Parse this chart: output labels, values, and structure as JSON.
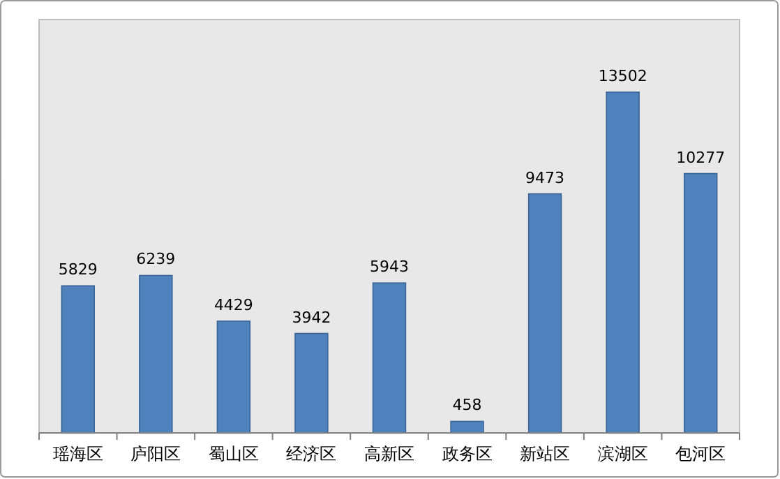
{
  "chart_data": {
    "type": "bar",
    "categories": [
      "瑶海区",
      "庐阳区",
      "蜀山区",
      "经济区",
      "高新区",
      "政务区",
      "新站区",
      "滨湖区",
      "包河区"
    ],
    "values": [
      5829,
      6239,
      4429,
      3942,
      5943,
      458,
      9473,
      13502,
      10277
    ],
    "color": "#4f81bd",
    "data_labels": true
  }
}
